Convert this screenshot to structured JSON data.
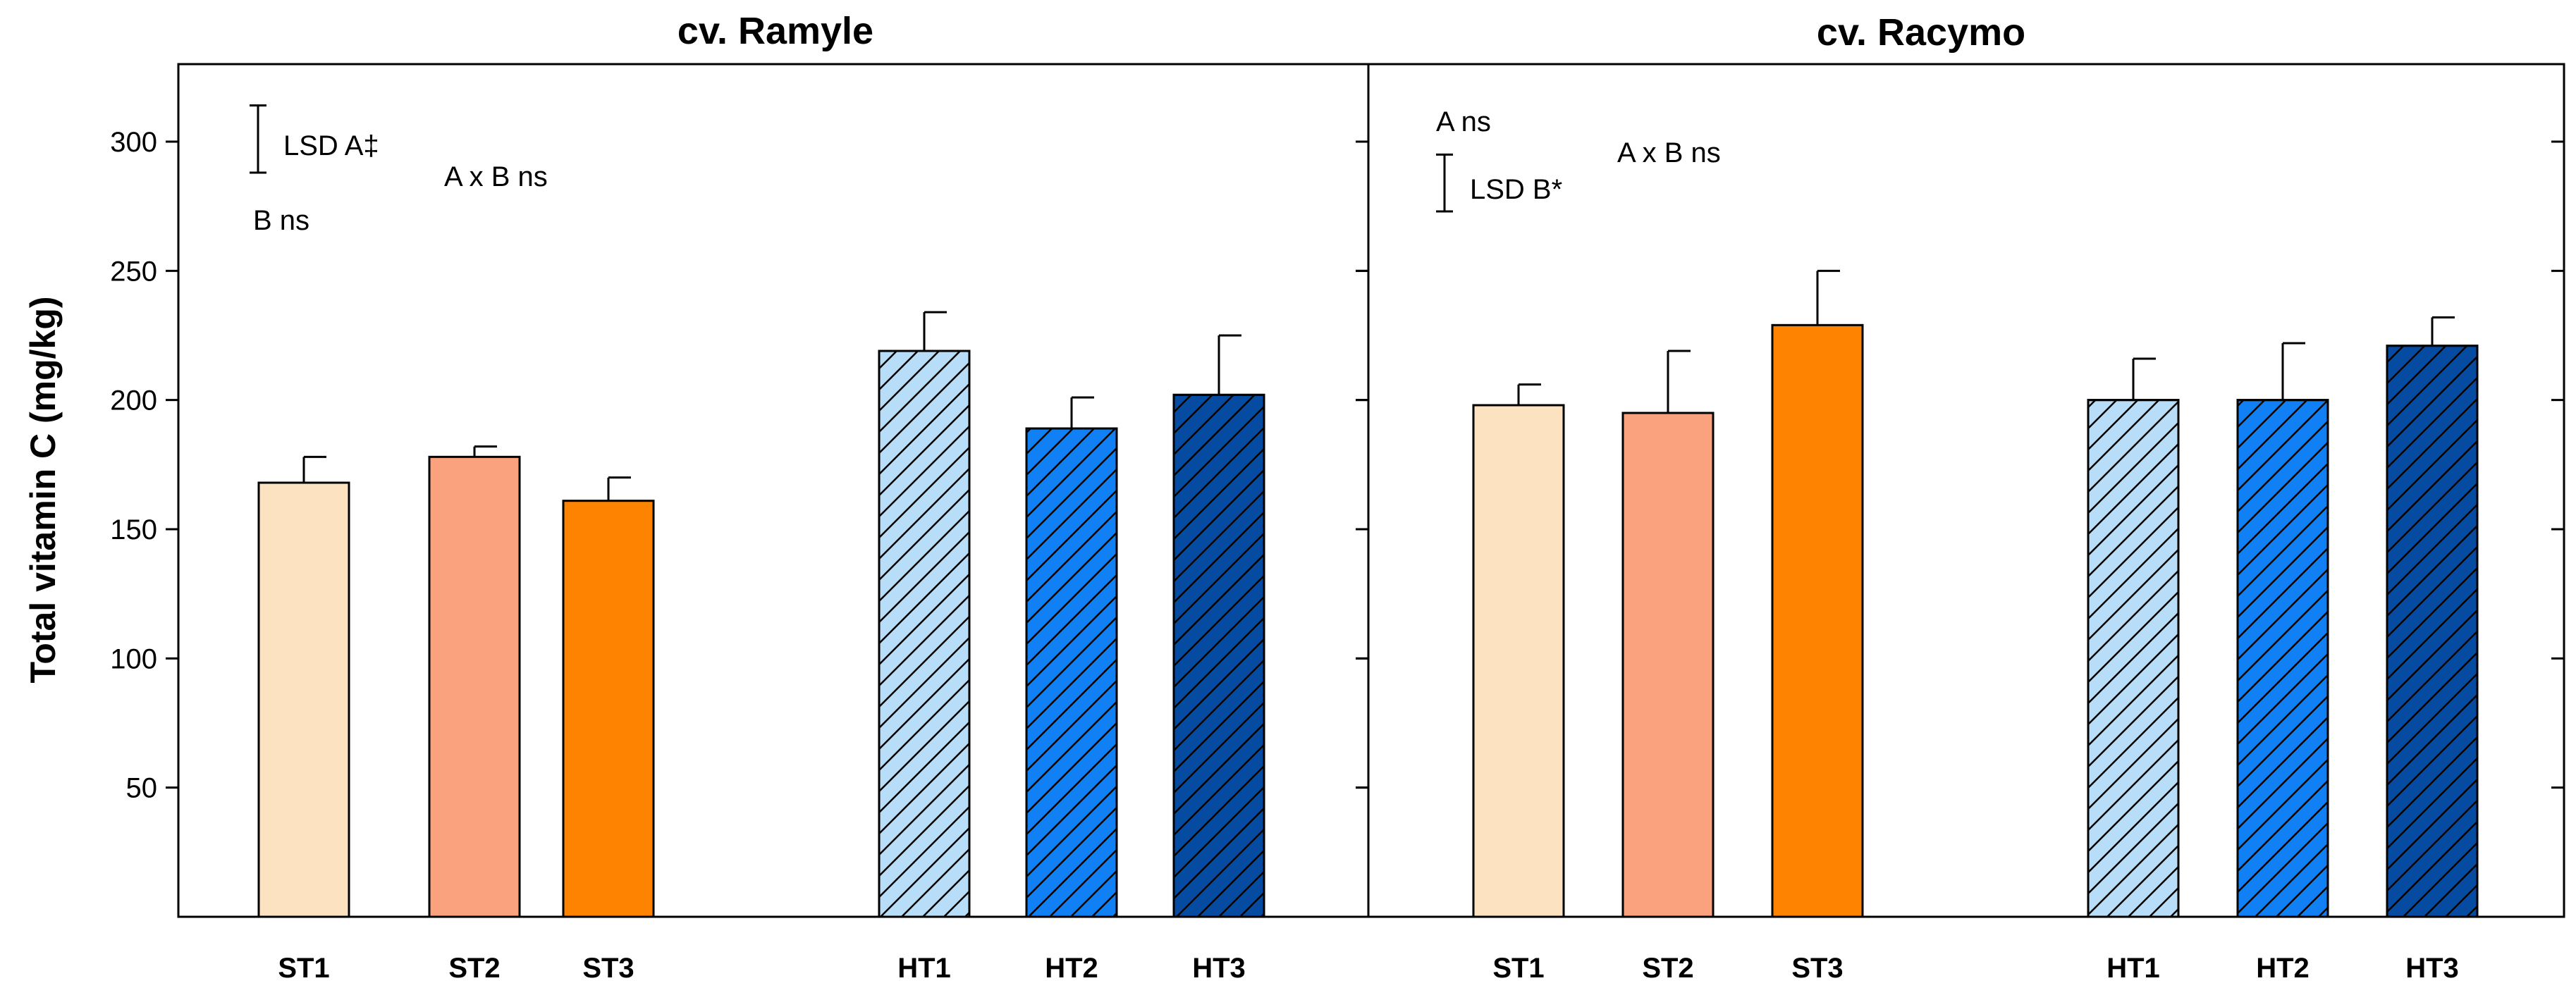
{
  "chart_data": [
    {
      "type": "bar",
      "title": "cv. Ramyle",
      "ylabel": "Total vitamin C (mg/kg)",
      "ylim": [
        0,
        330
      ],
      "yticks": [
        50,
        100,
        150,
        200,
        250,
        300
      ],
      "categories": [
        "ST1",
        "ST2",
        "ST3",
        "HT1",
        "HT2",
        "HT3"
      ],
      "values": [
        168,
        178,
        161,
        219,
        189,
        202
      ],
      "errors": [
        10,
        4,
        9,
        15,
        12,
        23
      ],
      "colors": [
        "#FCE2C0",
        "#FAA27E",
        "#FD8301",
        "#B8DDF8",
        "#1180F5",
        "#064BA2"
      ],
      "hatched": [
        false,
        false,
        false,
        true,
        true,
        true
      ],
      "lsd": {
        "label": "LSD  A‡",
        "center": 301,
        "half": 13
      },
      "annotations": [
        "B ns",
        "A x B ns"
      ]
    },
    {
      "type": "bar",
      "title": "cv. Racymo",
      "ylim": [
        0,
        330
      ],
      "yticks": [
        50,
        100,
        150,
        200,
        250,
        300
      ],
      "categories": [
        "ST1",
        "ST2",
        "ST3",
        "HT1",
        "HT2",
        "HT3"
      ],
      "values": [
        198,
        195,
        229,
        200,
        200,
        221
      ],
      "errors": [
        8,
        24,
        21,
        16,
        22,
        11
      ],
      "colors": [
        "#FCE2C0",
        "#FAA27E",
        "#FD8301",
        "#B8DDF8",
        "#1180F5",
        "#064BA2"
      ],
      "hatched": [
        false,
        false,
        false,
        true,
        true,
        true
      ],
      "lsd": {
        "label": "LSD  B*",
        "center": 284,
        "half": 11
      },
      "annotations": [
        "A ns",
        "A x B ns"
      ]
    }
  ]
}
